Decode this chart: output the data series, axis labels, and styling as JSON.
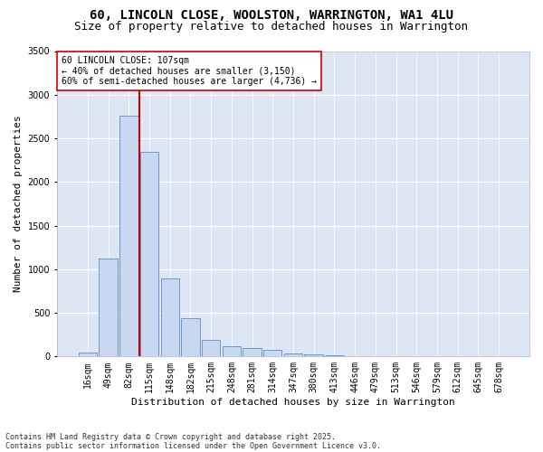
{
  "title": "60, LINCOLN CLOSE, WOOLSTON, WARRINGTON, WA1 4LU",
  "subtitle": "Size of property relative to detached houses in Warrington",
  "xlabel": "Distribution of detached houses by size in Warrington",
  "ylabel": "Number of detached properties",
  "categories": [
    "16sqm",
    "49sqm",
    "82sqm",
    "115sqm",
    "148sqm",
    "182sqm",
    "215sqm",
    "248sqm",
    "281sqm",
    "314sqm",
    "347sqm",
    "380sqm",
    "413sqm",
    "446sqm",
    "479sqm",
    "513sqm",
    "546sqm",
    "579sqm",
    "612sqm",
    "645sqm",
    "678sqm"
  ],
  "values": [
    50,
    1120,
    2760,
    2340,
    890,
    440,
    195,
    115,
    100,
    75,
    35,
    20,
    10,
    2,
    0,
    0,
    0,
    0,
    0,
    0,
    0
  ],
  "bar_color": "#c8d8f0",
  "bar_edge_color": "#5b8cc8",
  "vline_color": "#cc0000",
  "vline_x_index": 2,
  "annotation_title": "60 LINCOLN CLOSE: 107sqm",
  "annotation_line1": "← 40% of detached houses are smaller (3,150)",
  "annotation_line2": "60% of semi-detached houses are larger (4,736) →",
  "annotation_box_color": "#ffffff",
  "annotation_box_edge": "#cc0000",
  "ylim": [
    0,
    3500
  ],
  "yticks": [
    0,
    500,
    1000,
    1500,
    2000,
    2500,
    3000,
    3500
  ],
  "background_color": "#dce6f5",
  "grid_color": "#ffffff",
  "figure_bg": "#ffffff",
  "footer1": "Contains HM Land Registry data © Crown copyright and database right 2025.",
  "footer2": "Contains public sector information licensed under the Open Government Licence v3.0.",
  "title_fontsize": 10,
  "subtitle_fontsize": 9,
  "axis_fontsize": 8,
  "tick_fontsize": 7,
  "footer_fontsize": 6
}
